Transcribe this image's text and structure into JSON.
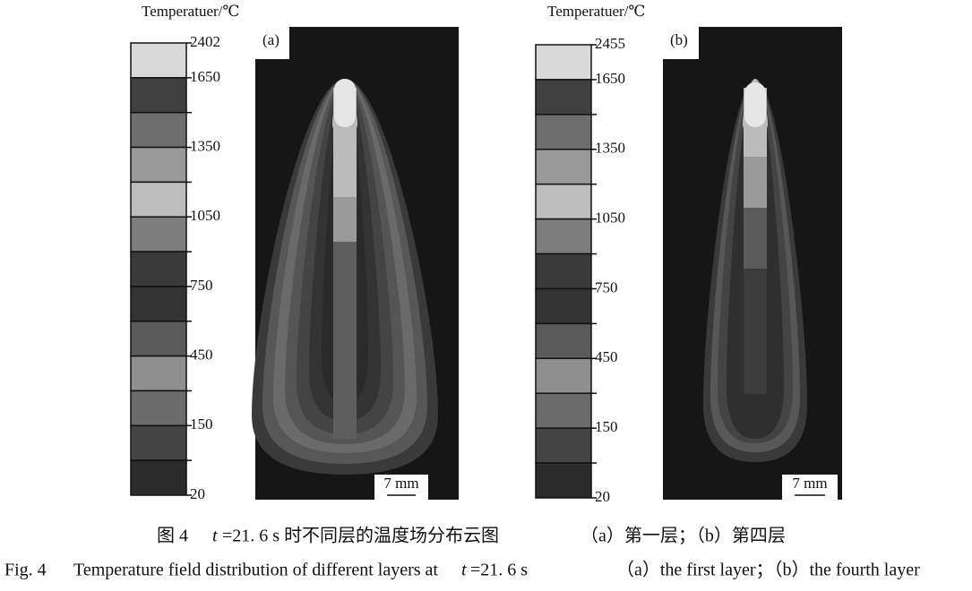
{
  "panels": [
    {
      "colorbar_title": "Temperatuer/℃",
      "label": "(a)",
      "ticks": [
        2402,
        1650,
        1350,
        1050,
        750,
        450,
        150,
        20
      ],
      "scale_bar": "7 mm"
    },
    {
      "colorbar_title": "Temperatuer/℃",
      "label": "(b)",
      "ticks": [
        2455,
        1650,
        1350,
        1050,
        750,
        450,
        150,
        20
      ],
      "scale_bar": "7 mm"
    }
  ],
  "caption": {
    "cn": [
      "图 4",
      "t",
      "=21. 6 s 时不同层的温度场分布云图",
      "（a）第一层；（b）第四层"
    ],
    "en": [
      "Fig. 4",
      "Temperature field distribution of different layers at",
      "t",
      "=21. 6 s",
      "（a）the first layer；（b）the fourth layer"
    ]
  }
}
